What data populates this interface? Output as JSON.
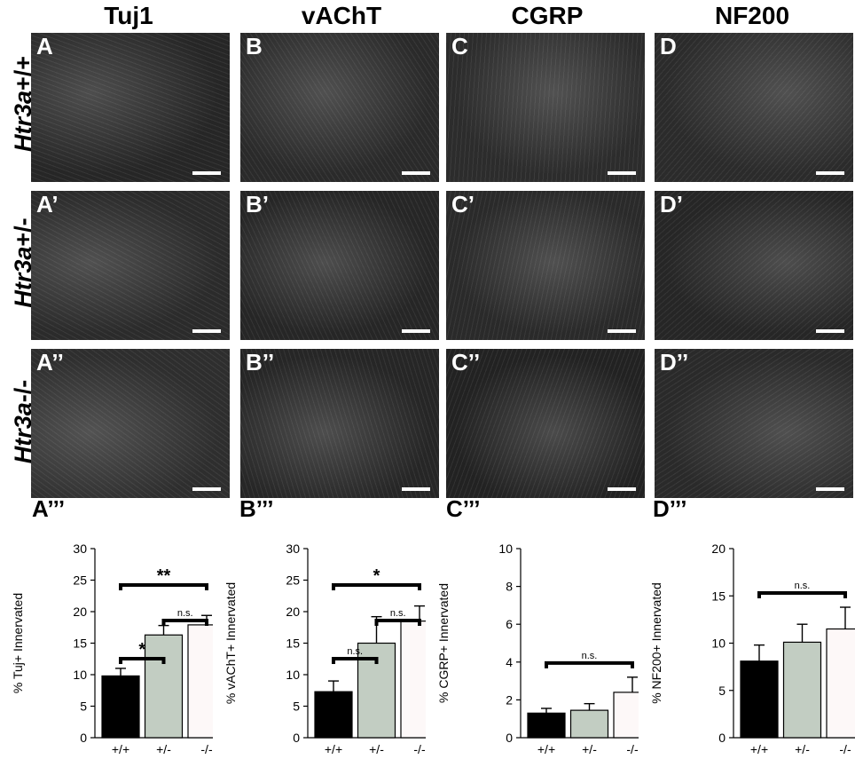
{
  "columns": [
    {
      "title": "Tuj1"
    },
    {
      "title": "vAChT"
    },
    {
      "title": "CGRP"
    },
    {
      "title": "NF200"
    }
  ],
  "rows": [
    {
      "gene": "Htr3a",
      "genotype": "+/+"
    },
    {
      "gene": "Htr3a",
      "genotype": "+/-"
    },
    {
      "gene": "Htr3a",
      "genotype": "-/-"
    }
  ],
  "panels": [
    [
      "A",
      "B",
      "C",
      "D"
    ],
    [
      "A’",
      "B’",
      "C’",
      "D’"
    ],
    [
      "A’’",
      "B’’",
      "C’’",
      "D’’"
    ]
  ],
  "chart_labels": [
    "A’’’",
    "B’’’",
    "C’’’",
    "D’’’"
  ],
  "colors": {
    "wt": "#000000",
    "het": "#c2cdc2",
    "ko": "#fdf8f8"
  },
  "chart_data": [
    {
      "type": "bar",
      "categories": [
        "+/+",
        "+/-",
        "-/-"
      ],
      "values": [
        9.8,
        16.3,
        17.9
      ],
      "errors": [
        1.2,
        1.5,
        1.5
      ],
      "ylabel": "% Tuj+ Innervated",
      "ylim": [
        0,
        30
      ],
      "yticks": [
        0,
        5,
        10,
        15,
        20,
        25,
        30
      ],
      "significance": [
        {
          "from": 0,
          "to": 2,
          "label": "**"
        },
        {
          "from": 1,
          "to": 2,
          "label": "n.s."
        },
        {
          "from": 0,
          "to": 1,
          "label": "*"
        }
      ]
    },
    {
      "type": "bar",
      "categories": [
        "+/+",
        "+/-",
        "-/-"
      ],
      "values": [
        7.3,
        15.0,
        18.5
      ],
      "errors": [
        1.7,
        4.2,
        2.4
      ],
      "ylabel": "% vAChT+ Innervated",
      "ylim": [
        0,
        30
      ],
      "yticks": [
        0,
        5,
        10,
        15,
        20,
        25,
        30
      ],
      "significance": [
        {
          "from": 0,
          "to": 2,
          "label": "*"
        },
        {
          "from": 1,
          "to": 2,
          "label": "n.s."
        },
        {
          "from": 0,
          "to": 1,
          "label": "n.s."
        }
      ]
    },
    {
      "type": "bar",
      "categories": [
        "+/+",
        "+/-",
        "-/-"
      ],
      "values": [
        1.3,
        1.45,
        2.4
      ],
      "errors": [
        0.25,
        0.35,
        0.8
      ],
      "ylabel": "% CGRP+ Innervated",
      "ylim": [
        0,
        10
      ],
      "yticks": [
        0,
        2,
        4,
        6,
        8,
        10
      ],
      "significance": [
        {
          "from": 0,
          "to": 2,
          "label": "n.s."
        }
      ]
    },
    {
      "type": "bar",
      "categories": [
        "+/+",
        "+/-",
        "-/-"
      ],
      "values": [
        8.1,
        10.1,
        11.5
      ],
      "errors": [
        1.7,
        1.9,
        2.3
      ],
      "ylabel": "% NF200+ Innervated",
      "ylim": [
        0,
        20
      ],
      "yticks": [
        0,
        5,
        10,
        15,
        20
      ],
      "significance": [
        {
          "from": 0,
          "to": 2,
          "label": "n.s."
        }
      ]
    }
  ]
}
